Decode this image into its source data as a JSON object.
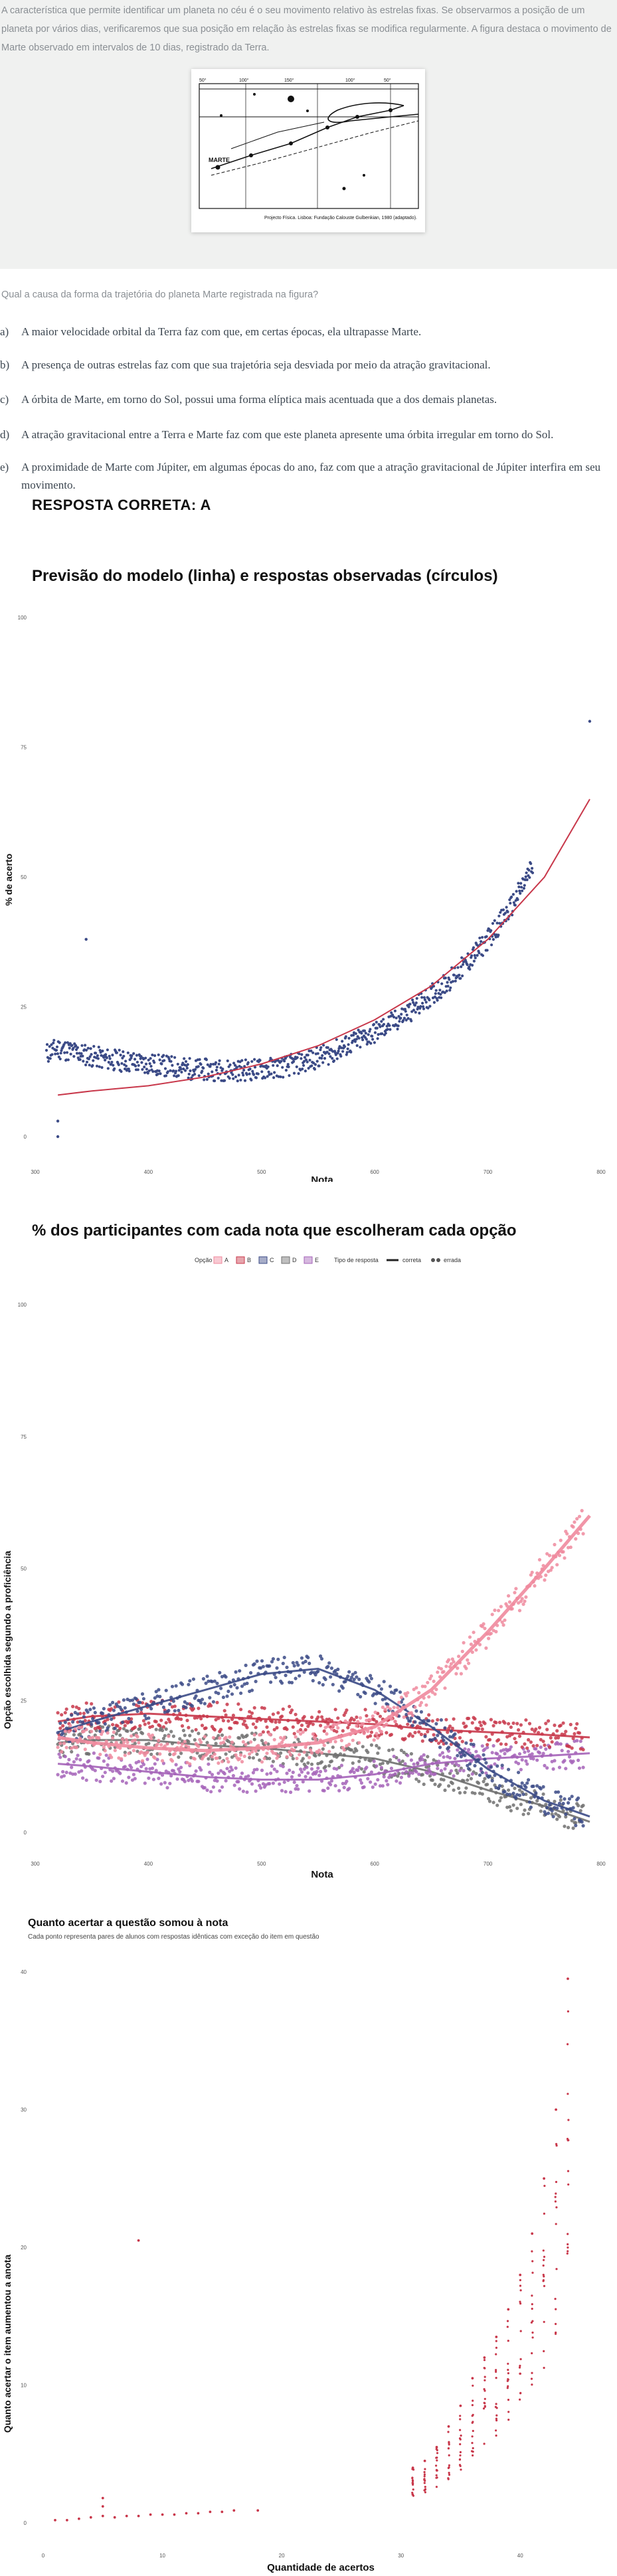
{
  "question": {
    "intro": "A característica que permite identificar um planeta no céu é o seu movimento relativo às estrelas fixas. Se observarmos a posição de um planeta por vários dias, verificaremos que sua posição em relação às estrelas fixas se modifica regularmente. A figura destaca o movimento de Marte observado em intervalos de 10 dias, registrado da Terra.",
    "figure": {
      "top_labels": [
        "50°",
        "100°",
        "150°",
        "100°",
        "50°"
      ],
      "label_marte": "MARTE",
      "source": "Projecto Física. Lisboa: Fundação Calouste Gulbenkian, 1980 (adaptado)."
    },
    "prompt": "Qual a causa da forma da trajetória do planeta Marte registrada na figura?",
    "alternatives": [
      {
        "letter": "a)",
        "text": "A maior velocidade orbital da Terra faz com que, em certas épocas, ela ultrapasse Marte."
      },
      {
        "letter": "b)",
        "text": "A presença de outras estrelas faz com que sua trajetória seja desviada por meio da atração gravitacional."
      },
      {
        "letter": "c)",
        "text": "A órbita de Marte, em torno do Sol, possui uma forma elíptica mais acentuada que a dos demais planetas."
      },
      {
        "letter": "d)",
        "text": "A atração gravitacional entre a Terra e Marte faz com que este planeta apresente uma órbita irregular em torno do Sol."
      },
      {
        "letter": "e)",
        "text": "A proximidade de Marte com Júpiter, em algumas épocas do ano, faz com que a atração gravitacional de Júpiter interfira em seu movimento."
      }
    ],
    "correct": "RESPOSTA CORRETA: A"
  },
  "chart_data": [
    {
      "type": "scatter",
      "title": "Previsão do modelo (linha) e respostas observadas (círculos)",
      "xlabel": "Nota",
      "ylabel": "% de acerto",
      "xlim": [
        300,
        800
      ],
      "ylim": [
        0,
        100
      ],
      "x_ticks": [
        300,
        400,
        500,
        600,
        700,
        800
      ],
      "y_ticks": [
        0,
        25,
        50,
        75,
        100
      ],
      "grid": false,
      "series": [
        {
          "kind": "points",
          "color": "#3b4a86",
          "x": [
            310,
            320,
            330,
            340,
            350,
            360,
            380,
            400,
            420,
            440,
            460,
            480,
            500,
            520,
            540,
            560,
            580,
            600,
            620,
            640,
            660,
            680,
            700,
            720,
            730,
            740
          ],
          "y": [
            16,
            17,
            16.5,
            16,
            15.5,
            15,
            14.5,
            14,
            13.5,
            13,
            12.8,
            12.8,
            13,
            13.5,
            14.5,
            16,
            18,
            20,
            22.5,
            25.5,
            29,
            33,
            38,
            44,
            48,
            52
          ]
        },
        {
          "kind": "line",
          "color": "#c8374a",
          "x": [
            320,
            350,
            400,
            450,
            500,
            550,
            600,
            650,
            700,
            750,
            790
          ],
          "y": [
            8,
            8.8,
            9.8,
            11.5,
            14,
            17.5,
            22.5,
            29,
            38,
            50,
            65
          ]
        }
      ],
      "annotations": [
        {
          "note": "outliers",
          "x": [
            320,
            320,
            345,
            790
          ],
          "y": [
            3,
            0,
            38,
            80
          ]
        }
      ]
    },
    {
      "type": "scatter",
      "title": "% dos participantes com cada nota que escolheram cada opção",
      "xlabel": "Nota",
      "ylabel": "Opção escolhida segundo a proficiência",
      "xlim": [
        300,
        800
      ],
      "ylim": [
        0,
        100
      ],
      "x_ticks": [
        300,
        400,
        500,
        600,
        700,
        800
      ],
      "y_ticks": [
        0,
        25,
        50,
        75,
        100
      ],
      "legend": {
        "title": "Opção",
        "items": [
          "A",
          "B",
          "C",
          "D",
          "E"
        ],
        "type_title": "Tipo de resposta",
        "type_items": [
          "correta",
          "errada"
        ],
        "placement": "top"
      },
      "series": [
        {
          "name": "A",
          "color": "#ef8a9d",
          "x": [
            320,
            350,
            400,
            450,
            500,
            550,
            600,
            650,
            700,
            750,
            790
          ],
          "y": [
            18,
            17,
            16,
            15.5,
            16,
            17,
            20,
            27,
            38,
            50,
            60
          ]
        },
        {
          "name": "B",
          "color": "#c8374a",
          "x": [
            320,
            350,
            400,
            450,
            500,
            550,
            600,
            650,
            700,
            750,
            790
          ],
          "y": [
            21,
            22,
            22.5,
            22,
            21.5,
            21,
            20.5,
            19.5,
            19,
            18.5,
            18
          ]
        },
        {
          "name": "C",
          "color": "#3b4a86",
          "x": [
            320,
            350,
            400,
            450,
            500,
            550,
            600,
            650,
            700,
            750,
            790
          ],
          "y": [
            19,
            21,
            24,
            27,
            30,
            31,
            27,
            20,
            12,
            6,
            3
          ]
        },
        {
          "name": "D",
          "color": "#707070",
          "x": [
            320,
            350,
            400,
            450,
            500,
            550,
            600,
            650,
            700,
            750,
            790
          ],
          "y": [
            17,
            17.5,
            17.5,
            16.5,
            16,
            15,
            14,
            11.5,
            8,
            5,
            2
          ]
        },
        {
          "name": "E",
          "color": "#a463b8",
          "x": [
            320,
            350,
            400,
            450,
            500,
            550,
            600,
            650,
            700,
            750,
            790
          ],
          "y": [
            13,
            12.5,
            11.5,
            10.5,
            10,
            10,
            11,
            13,
            14,
            14.5,
            15
          ]
        }
      ]
    },
    {
      "type": "scatter",
      "title": "Quanto acertar a questão somou à nota",
      "subtitle": "Cada ponto representa pares de alunos com respostas idênticas com exceção do item em questão",
      "xlabel": "Quantidade de acertos",
      "ylabel": "Quanto acertar o item aumentou a anota",
      "xlim": [
        0,
        45
      ],
      "ylim": [
        0,
        40
      ],
      "x_ticks": [
        0,
        10,
        20,
        30,
        40
      ],
      "y_ticks": [
        0,
        10,
        20,
        30,
        40
      ],
      "color": "#c8374a",
      "x": [
        1,
        2,
        3,
        4,
        5,
        5,
        5,
        6,
        7,
        8,
        8,
        9,
        10,
        11,
        12,
        13,
        14,
        15,
        16,
        18,
        31,
        32,
        33,
        34,
        35,
        36,
        37,
        38,
        39,
        40,
        41,
        42,
        43,
        44
      ],
      "y": [
        0.2,
        0.2,
        0.3,
        0.4,
        0.5,
        1.2,
        1.8,
        0.4,
        0.5,
        0.5,
        20.5,
        0.6,
        0.6,
        0.6,
        0.7,
        0.7,
        0.8,
        0.8,
        0.9,
        0.9,
        4.0,
        4.5,
        5.5,
        7.0,
        8.5,
        10.5,
        12.0,
        13.5,
        15.5,
        18.0,
        21.0,
        25.0,
        30.0,
        39.5
      ]
    }
  ]
}
